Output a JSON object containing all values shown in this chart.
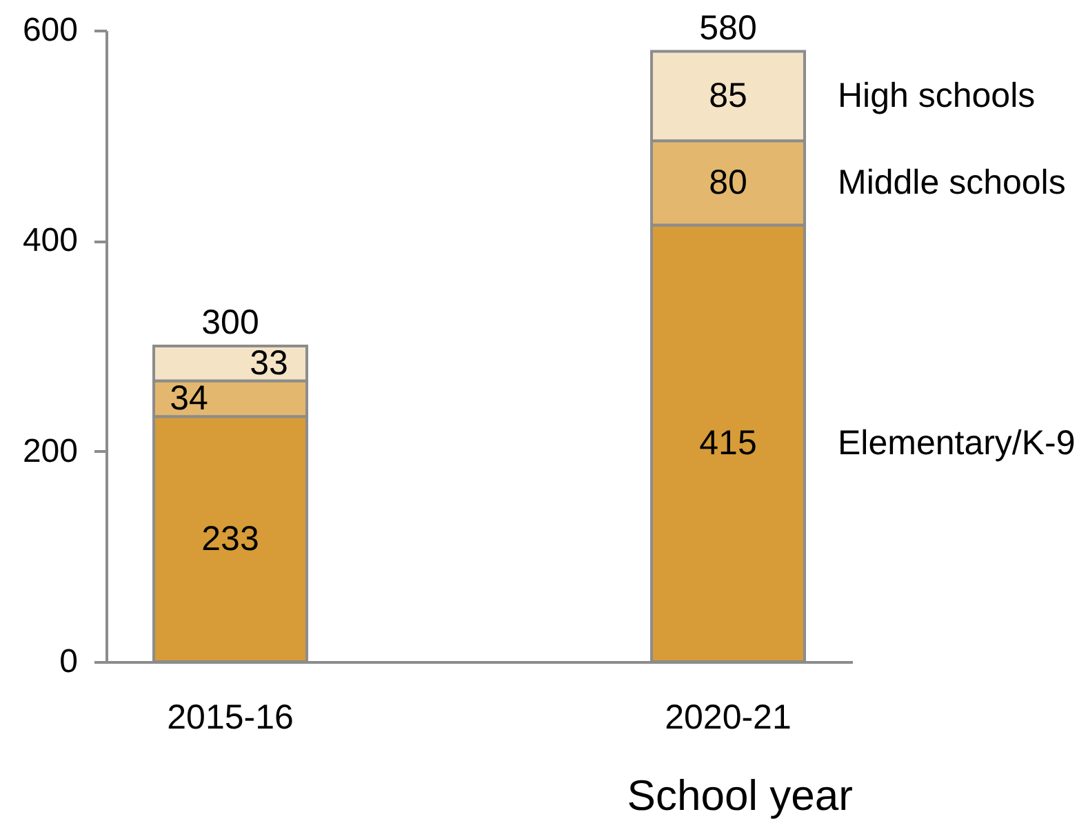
{
  "chart_data": {
    "type": "bar",
    "stacked": true,
    "categories": [
      "2015-16",
      "2020-21"
    ],
    "xlabel": "School year",
    "ylim": [
      0,
      600
    ],
    "yticks": [
      0,
      200,
      400,
      600
    ],
    "grid": false,
    "legend": false,
    "data_labels": true,
    "totals": [
      "300",
      "580"
    ],
    "series": [
      {
        "name": "Elementary/K-9",
        "color": "#d79c37",
        "values": [
          233,
          415
        ]
      },
      {
        "name": "Middle schools",
        "color": "#e3b86e",
        "values": [
          34,
          80
        ]
      },
      {
        "name": "High schools",
        "color": "#f4e3c5",
        "values": [
          33,
          85
        ]
      }
    ]
  }
}
